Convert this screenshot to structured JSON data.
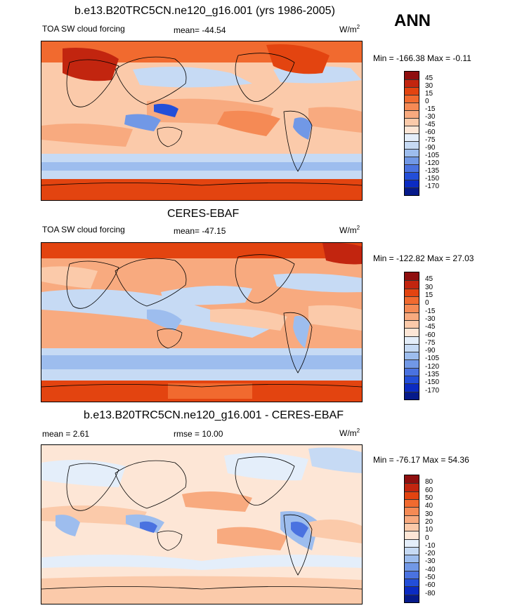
{
  "season": "ANN",
  "panels": [
    {
      "title": "b.e13.B20TRC5CN.ne120_g16.001 (yrs 1986-2005)",
      "left_label": "TOA SW cloud forcing",
      "center_label": "mean= -44.54",
      "units": "W/m",
      "units_sup": "2",
      "minmax": "Min = -166.38 Max =  -0.11",
      "levels": [
        "45",
        "30",
        "15",
        "0",
        "-15",
        "-30",
        "-45",
        "-60",
        "-75",
        "-90",
        "-105",
        "-120",
        "-135",
        "-150",
        "-170"
      ],
      "colors": [
        "#8f0f0f",
        "#c2250f",
        "#e34410",
        "#f16a2f",
        "#f58a55",
        "#f8aa7f",
        "#fbcaaa",
        "#fde6d6",
        "#e4eefa",
        "#c6daf4",
        "#9dbdee",
        "#7198e6",
        "#4a72e0",
        "#234ed8",
        "#0b2bc2",
        "#061a8a"
      ]
    },
    {
      "title": "CERES-EBAF",
      "left_label": "TOA SW cloud forcing",
      "center_label": "mean= -47.15",
      "units": "W/m",
      "units_sup": "2",
      "minmax": "Min = -122.82 Max =  27.03",
      "levels": [
        "45",
        "30",
        "15",
        "0",
        "-15",
        "-30",
        "-45",
        "-60",
        "-75",
        "-90",
        "-105",
        "-120",
        "-135",
        "-150",
        "-170"
      ],
      "colors": [
        "#8f0f0f",
        "#c2250f",
        "#e34410",
        "#f16a2f",
        "#f58a55",
        "#f8aa7f",
        "#fbcaaa",
        "#fde6d6",
        "#e4eefa",
        "#c6daf4",
        "#9dbdee",
        "#7198e6",
        "#4a72e0",
        "#234ed8",
        "#0b2bc2",
        "#061a8a"
      ]
    },
    {
      "title": "b.e13.B20TRC5CN.ne120_g16.001 - CERES-EBAF",
      "left_label": "mean =   2.61",
      "center_label": "rmse =  10.00",
      "units": "W/m",
      "units_sup": "2",
      "minmax": "Min = -76.17 Max =  54.36",
      "levels": [
        "80",
        "60",
        "50",
        "40",
        "30",
        "20",
        "10",
        "0",
        "-10",
        "-20",
        "-30",
        "-40",
        "-50",
        "-60",
        "-80"
      ],
      "colors": [
        "#8f0f0f",
        "#c2250f",
        "#e34410",
        "#f16a2f",
        "#f58a55",
        "#f8aa7f",
        "#fbcaaa",
        "#fde6d6",
        "#e4eefa",
        "#c6daf4",
        "#9dbdee",
        "#7198e6",
        "#4a72e0",
        "#234ed8",
        "#0b2bc2",
        "#061a8a"
      ]
    }
  ]
}
